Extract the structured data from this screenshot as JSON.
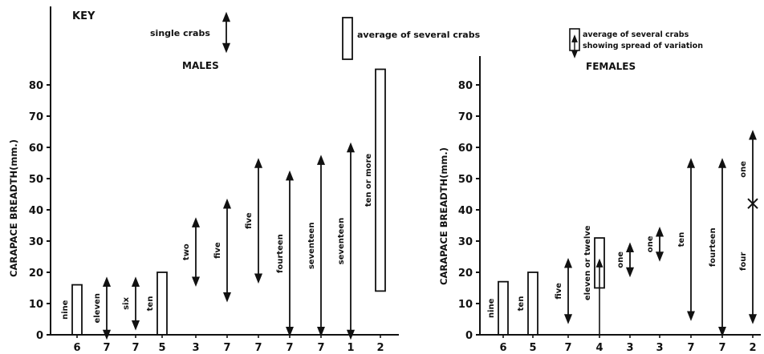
{
  "key": {
    "heading": "KEY",
    "single": "single crabs",
    "average": "average of several crabs",
    "spread_1": "average of several crabs",
    "spread_2": "showing spread of variation"
  },
  "chart_data": [
    {
      "type": "range",
      "title": "MALES",
      "ylabel": "CARAPACE BREADTH(mm.)",
      "ylim": [
        0,
        85
      ],
      "yticks": [
        0,
        10,
        20,
        30,
        40,
        50,
        60,
        70,
        80
      ],
      "categories": [
        "6",
        "7",
        "7",
        "5",
        "3",
        "7",
        "7",
        "7",
        "7",
        "1",
        "2"
      ],
      "items": [
        {
          "x": "6",
          "kind": "bar",
          "low": 0,
          "high": 16,
          "label": "nine"
        },
        {
          "x": "7",
          "kind": "arrow",
          "low": 0,
          "high": 17,
          "label": "eleven"
        },
        {
          "x": "7",
          "kind": "arrow",
          "low": 3,
          "high": 17,
          "label": "six"
        },
        {
          "x": "5",
          "kind": "bar",
          "low": 0,
          "high": 20,
          "label": "ten"
        },
        {
          "x": "3",
          "kind": "arrow",
          "low": 17,
          "high": 36,
          "label": "two"
        },
        {
          "x": "7",
          "kind": "arrow",
          "low": 12,
          "high": 42,
          "label": "five"
        },
        {
          "x": "7",
          "kind": "arrow",
          "low": 18,
          "high": 55,
          "label": "five"
        },
        {
          "x": "7",
          "kind": "arrow",
          "low": 1,
          "high": 51,
          "label": "fourteen"
        },
        {
          "x": "7",
          "kind": "arrow",
          "low": 1,
          "high": 56,
          "label": "seventeen"
        },
        {
          "x": "1",
          "kind": "arrow",
          "low": 0,
          "high": 60,
          "label": "seventeen"
        },
        {
          "x": "2",
          "kind": "bar",
          "low": 14,
          "high": 85,
          "label": "ten or more"
        }
      ]
    },
    {
      "type": "range",
      "title": "FEMALES",
      "ylabel": "CARAPACE BREADTH(mm.)",
      "ylim": [
        0,
        85
      ],
      "yticks": [
        0,
        10,
        20,
        30,
        40,
        50,
        60,
        70,
        80
      ],
      "categories": [
        "6",
        "5",
        "7",
        "4",
        "3",
        "3",
        "7",
        "7",
        "2"
      ],
      "items": [
        {
          "x": "6",
          "kind": "bar",
          "low": 0,
          "high": 17,
          "label": "nine"
        },
        {
          "x": "5",
          "kind": "bar",
          "low": 0,
          "high": 20,
          "label": "ten"
        },
        {
          "x": "7",
          "kind": "arrow",
          "low": 5,
          "high": 23,
          "label": "five"
        },
        {
          "x": "4",
          "kind": "barspread",
          "low": 15,
          "high": 31,
          "spread_low": 0,
          "spread_high": 23,
          "label": "eleven or twelve"
        },
        {
          "x": "3",
          "kind": "arrow",
          "low": 20,
          "high": 28,
          "label": "one"
        },
        {
          "x": "3",
          "kind": "arrow",
          "low": 25,
          "high": 33,
          "label": "one"
        },
        {
          "x": "7",
          "kind": "arrow",
          "low": 6,
          "high": 55,
          "label": "ten"
        },
        {
          "x": "7",
          "kind": "arrow",
          "low": 1,
          "high": 55,
          "label": "fourteen"
        },
        {
          "x": "2",
          "kind": "arrow",
          "low": 5,
          "high": 64,
          "label": "four",
          "label2": "one",
          "cross": 42
        }
      ]
    }
  ]
}
